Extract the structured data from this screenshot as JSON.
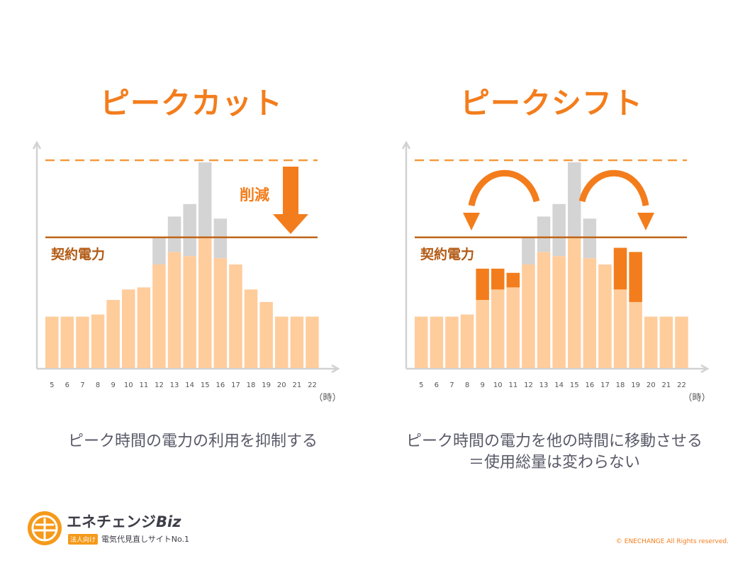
{
  "titles": {
    "left": "ピークカット",
    "right": "ピークシフト"
  },
  "captions": {
    "left": "ピーク時間の電力の利用を抑制する",
    "right_line1": "ピーク時間の電力を他の時間に移動させる",
    "right_line2": "＝使用総量は変わらない"
  },
  "labels": {
    "contract": "契約電力",
    "reduction": "削減",
    "unit": "（時）"
  },
  "colors": {
    "base": "#ffcc9c",
    "excess": "#d4d4d4",
    "shifted": "#f37d1c",
    "contract_line": "#c1661a",
    "peak_line": "#f39a3e",
    "axis": "#d2d2d2",
    "accent": "#f37d1c"
  },
  "logo": {
    "name": "エネチェンジ",
    "biz": "Biz",
    "badge": "法人向け",
    "tagline": "電気代見直しサイトNo.1"
  },
  "copyright": "© ENECHANGE All Rights reserved.",
  "chart_data": [
    {
      "type": "bar",
      "title": "ピークカット",
      "categories": [
        "5",
        "6",
        "7",
        "8",
        "9",
        "10",
        "11",
        "12",
        "13",
        "14",
        "15",
        "16",
        "17",
        "18",
        "19",
        "20",
        "21",
        "22"
      ],
      "ylim": [
        0,
        100
      ],
      "contract_level": 63,
      "peak_level": 100,
      "series": [
        {
          "name": "",
          "role": "base",
          "values": [
            25,
            25,
            25,
            26,
            33,
            38,
            39,
            50,
            56,
            54,
            63,
            53,
            50,
            38,
            32,
            25,
            25,
            25
          ]
        },
        {
          "name": "",
          "role": "excess",
          "values": [
            0,
            0,
            0,
            0,
            0,
            0,
            0,
            13,
            17,
            25,
            36,
            19,
            0,
            0,
            0,
            0,
            0,
            0
          ]
        }
      ]
    },
    {
      "type": "bar",
      "title": "ピークシフト",
      "categories": [
        "5",
        "6",
        "7",
        "8",
        "9",
        "10",
        "11",
        "12",
        "13",
        "14",
        "15",
        "16",
        "17",
        "18",
        "19",
        "20",
        "21",
        "22"
      ],
      "ylim": [
        0,
        100
      ],
      "contract_level": 63,
      "peak_level": 100,
      "series": [
        {
          "name": "",
          "role": "base",
          "values": [
            25,
            25,
            25,
            26,
            33,
            38,
            39,
            50,
            56,
            54,
            63,
            53,
            50,
            38,
            32,
            25,
            25,
            25
          ]
        },
        {
          "name": "",
          "role": "excess",
          "values": [
            0,
            0,
            0,
            0,
            0,
            0,
            0,
            13,
            17,
            25,
            36,
            19,
            0,
            0,
            0,
            0,
            0,
            0
          ]
        },
        {
          "name": "",
          "role": "shifted",
          "values": [
            0,
            0,
            0,
            0,
            15,
            10,
            7,
            0,
            0,
            0,
            0,
            0,
            0,
            20,
            24,
            0,
            0,
            0
          ]
        }
      ]
    }
  ]
}
